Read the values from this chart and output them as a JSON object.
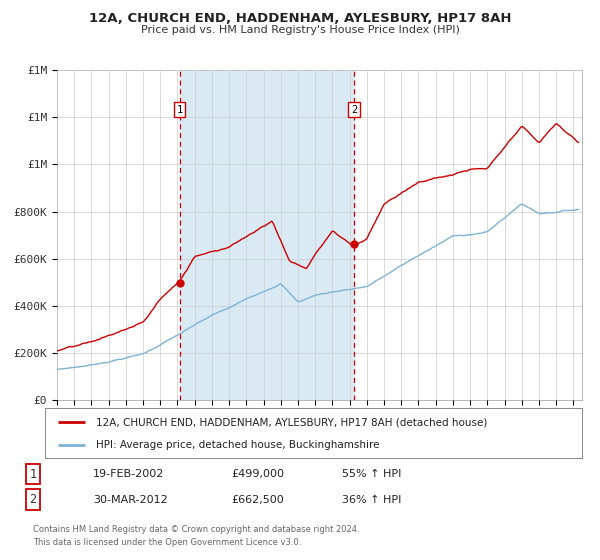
{
  "title_line1": "12A, CHURCH END, HADDENHAM, AYLESBURY, HP17 8AH",
  "title_line2": "Price paid vs. HM Land Registry's House Price Index (HPI)",
  "legend_line1": "12A, CHURCH END, HADDENHAM, AYLESBURY, HP17 8AH (detached house)",
  "legend_line2": "HPI: Average price, detached house, Buckinghamshire",
  "annotation1_date": "19-FEB-2002",
  "annotation1_price": "£499,000",
  "annotation1_hpi": "55% ↑ HPI",
  "annotation2_date": "30-MAR-2012",
  "annotation2_price": "£662,500",
  "annotation2_hpi": "36% ↑ HPI",
  "footnote1": "Contains HM Land Registry data © Crown copyright and database right 2024.",
  "footnote2": "This data is licensed under the Open Government Licence v3.0.",
  "red_color": "#cc0000",
  "blue_color": "#7fb3d3",
  "shade_color": "#daeaf5",
  "vline_color": "#cc0000",
  "bg_color": "#ffffff",
  "grid_color": "#cccccc",
  "ylim": [
    0,
    1400000
  ],
  "yticks": [
    0,
    200000,
    400000,
    600000,
    800000,
    1000000,
    1200000,
    1400000
  ],
  "x_start_year": 1995.0,
  "x_end_year": 2025.5,
  "sale1_year": 2002.13,
  "sale2_year": 2012.25,
  "sale1_price": 499000,
  "sale2_price": 662500
}
